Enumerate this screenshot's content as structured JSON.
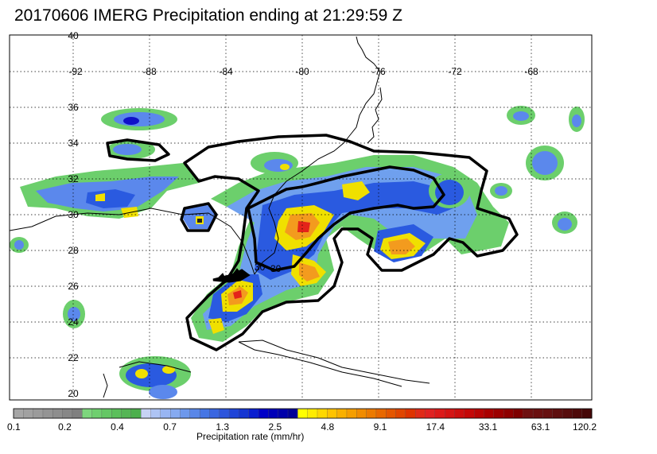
{
  "title": "20170606 IMERG Precipitation ending at 21:29:59 Z",
  "map": {
    "lat_labels": [
      "40",
      "36",
      "34",
      "32",
      "30",
      "28",
      "26",
      "24",
      "22",
      "20"
    ],
    "lon_labels": [
      "-92",
      "-88",
      "-84",
      "-80",
      "-76",
      "-72",
      "-68"
    ],
    "inline_labels": [
      "30",
      "30"
    ],
    "colors": {
      "frame": "#000000",
      "grid": "#000000",
      "coast": "#000000",
      "outline": "#000000",
      "green": "#6ccf6c",
      "blue_light": "#8ab8f0",
      "blue": "#2a5ae0",
      "blue_dark": "#1010c8",
      "yellow": "#ffff00",
      "orange": "#f39b1e",
      "red": "#e4231a"
    }
  },
  "colorbar": {
    "title": "Precipitation rate (mm/hr)",
    "tick_labels": [
      "0.1",
      "0.2",
      "0.4",
      "0.7",
      "1.3",
      "2.5",
      "4.8",
      "9.1",
      "17.4",
      "33.1",
      "63.1",
      "120.2"
    ],
    "colors": [
      "#a6a6a6",
      "#a1a1a1",
      "#9b9b9b",
      "#949494",
      "#8e8e8e",
      "#878787",
      "#808080",
      "#7dd67d",
      "#6fcf6f",
      "#65c765",
      "#5bbf5b",
      "#55b555",
      "#4caf4c",
      "#c7d3f5",
      "#aec4f4",
      "#98b5f2",
      "#86aaf0",
      "#6d98ec",
      "#5987e8",
      "#4676e4",
      "#3a66e0",
      "#2d55dc",
      "#2045d8",
      "#1535d2",
      "#0a1ed0",
      "#0000c8",
      "#0000b8",
      "#0000aa",
      "#000096",
      "#ffff00",
      "#ffec00",
      "#ffd800",
      "#ffc300",
      "#f9b000",
      "#f59e00",
      "#f18c00",
      "#ec7a00",
      "#e86800",
      "#e45600",
      "#e04500",
      "#de3300",
      "#e02a18",
      "#e02222",
      "#dc1a1a",
      "#d41414",
      "#cc0e0e",
      "#c40808",
      "#b80404",
      "#aa0000",
      "#9c0000",
      "#8e0000",
      "#7e0000",
      "#6e1010",
      "#6a1010",
      "#661010",
      "#5e0e0e",
      "#560c0c",
      "#4e0a0a",
      "#460808"
    ]
  }
}
